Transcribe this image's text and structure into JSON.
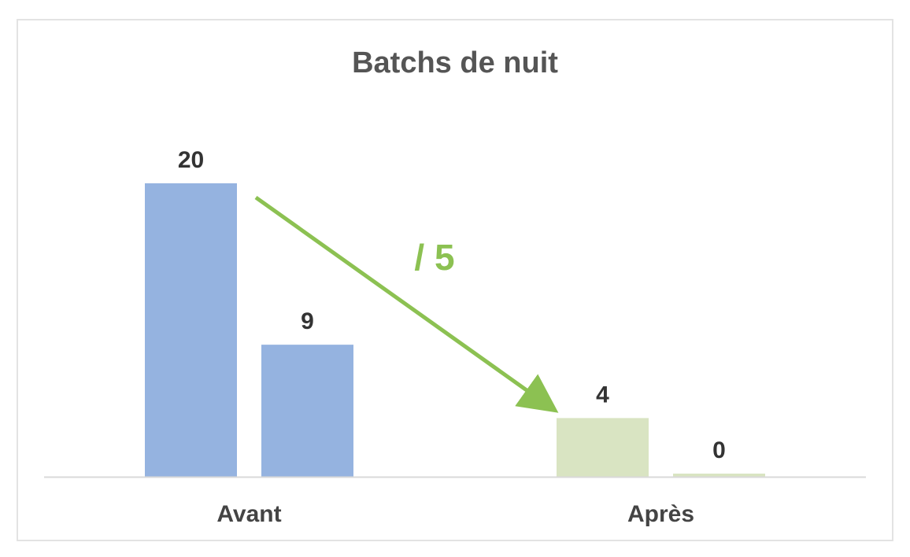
{
  "chart_data": {
    "type": "bar",
    "title": "Batchs de nuit",
    "categories": [
      "Avant",
      "Après"
    ],
    "values": [
      [
        20,
        9
      ],
      [
        4,
        0
      ]
    ],
    "colors": [
      "#95b3e0",
      "#d9e4c2"
    ],
    "ylim": [
      0,
      20
    ],
    "grid": false,
    "legend": "none",
    "annotation": {
      "text": "/ 5",
      "color": "#8cc152",
      "from_category": "Avant",
      "to_category": "Après"
    }
  }
}
